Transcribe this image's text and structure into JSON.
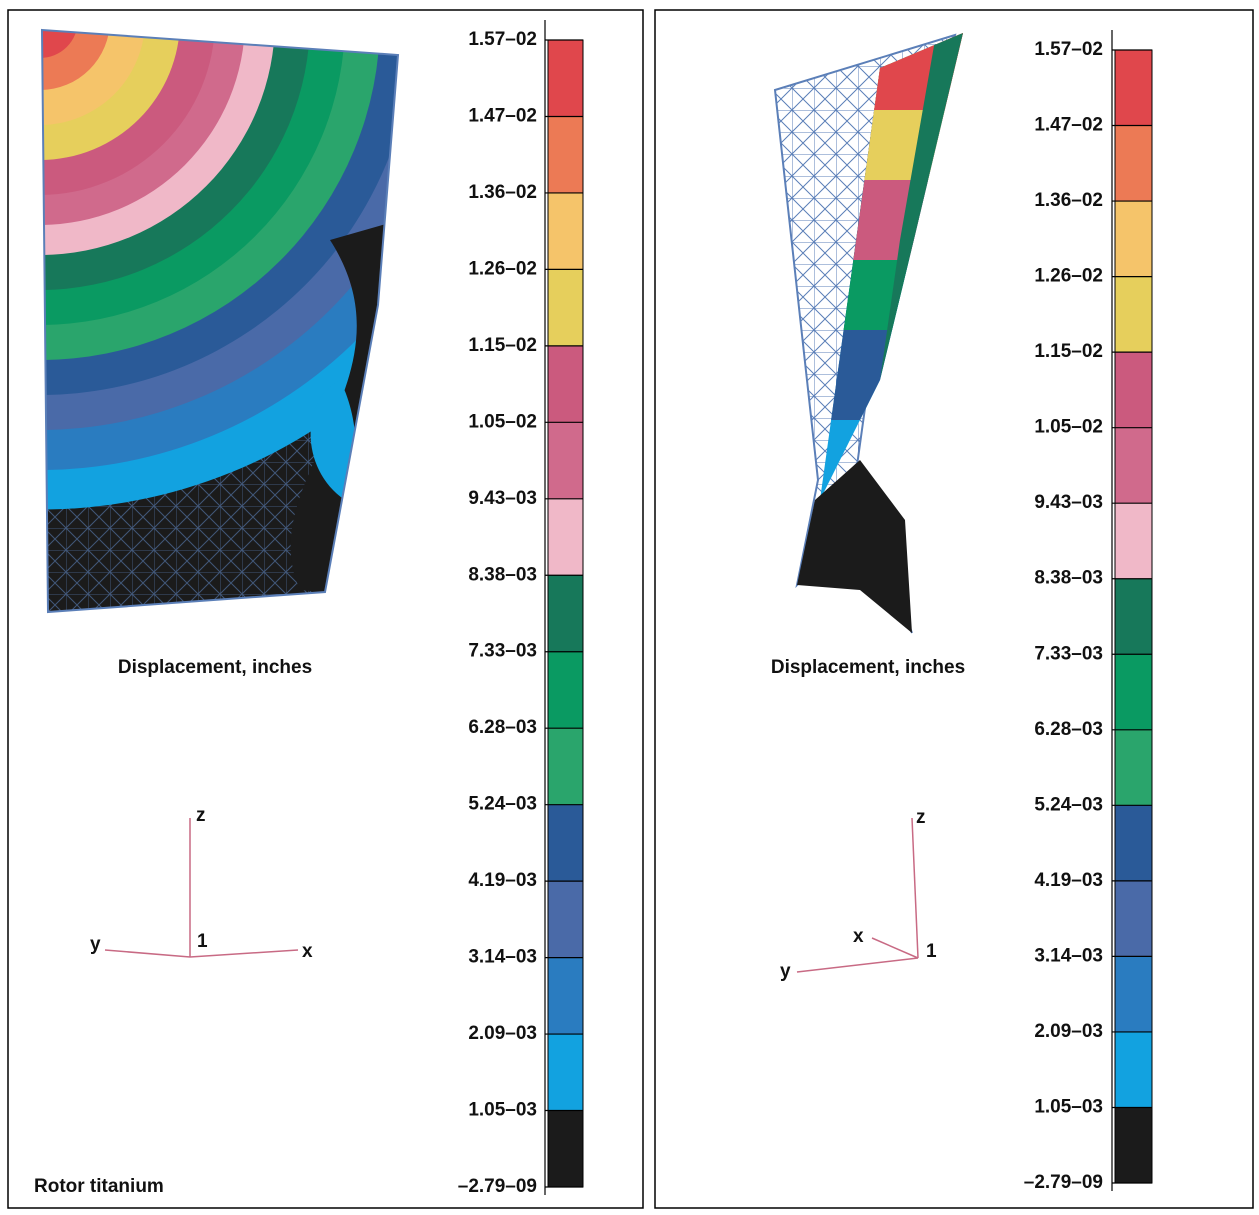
{
  "panels": [
    {
      "legend_labels": [
        "1.57–02",
        "1.47–02",
        "1.36–02",
        "1.26–02",
        "1.15–02",
        "1.05–02",
        "9.43–03",
        "8.38–03",
        "7.33–03",
        "6.28–03",
        "5.24–03",
        "4.19–03",
        "3.14–03",
        "2.09–03",
        "1.05–03",
        "–2.79–09"
      ],
      "caption": "Displacement, inches",
      "axes": {
        "z": "z",
        "y": "y",
        "x": "x",
        "origin": "1"
      },
      "note": "Rotor titanium"
    },
    {
      "legend_labels": [
        "1.57–02",
        "1.47–02",
        "1.36–02",
        "1.26–02",
        "1.15–02",
        "1.05–02",
        "9.43–03",
        "8.38–03",
        "7.33–03",
        "6.28–03",
        "5.24–03",
        "4.19–03",
        "3.14–03",
        "2.09–03",
        "1.05–03",
        "–2.79–09"
      ],
      "caption": "Displacement, inches",
      "axes": {
        "z": "z",
        "y": "y",
        "x": "x",
        "origin": "1"
      }
    }
  ],
  "colorbar_colors": [
    "#e0474c",
    "#ec7a55",
    "#f5c46a",
    "#e6cf5c",
    "#cb5a7e",
    "#d06a8c",
    "#f0b8c8",
    "#17785a",
    "#0a9a62",
    "#2aa56c",
    "#2a5a98",
    "#4a6aa8",
    "#2a7cc0",
    "#12a2e0",
    "#1b1b1b"
  ]
}
